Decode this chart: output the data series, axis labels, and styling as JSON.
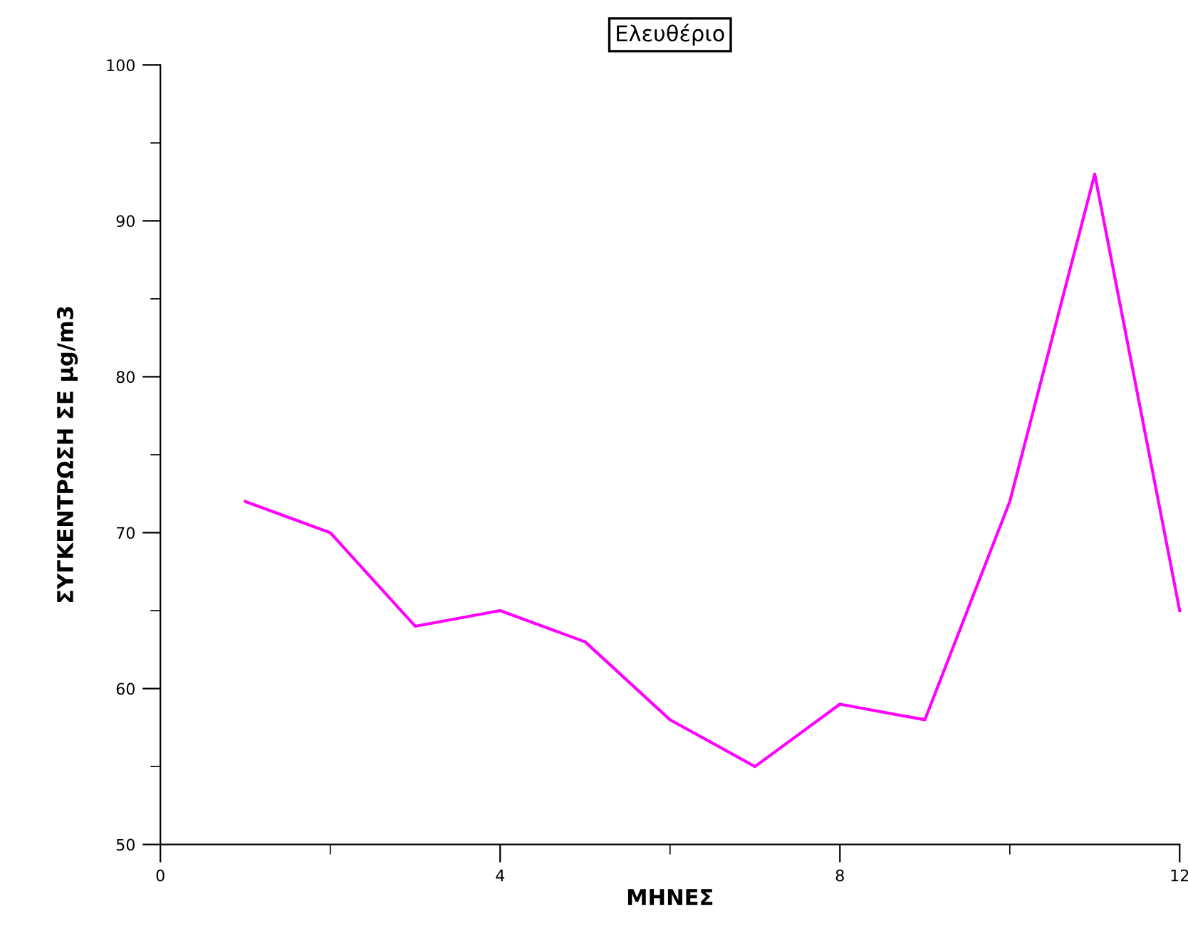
{
  "chart_data": {
    "type": "line",
    "title": "Ελευθέριο",
    "xlabel": "ΜΗΝΕΣ",
    "ylabel": "ΣΥΓΚΕΝΤΡΩΣΗ ΣΕ μg/m3",
    "x": [
      1,
      2,
      3,
      4,
      5,
      6,
      7,
      8,
      9,
      10,
      11,
      12
    ],
    "series": [
      {
        "color": "#ff00ff",
        "values": [
          72,
          70,
          64,
          65,
          63,
          58,
          55,
          59,
          58,
          72,
          93,
          65
        ]
      }
    ],
    "xlim": [
      0,
      12
    ],
    "xticks": [
      0,
      {
        "value": 2,
        "label": null
      },
      4,
      {
        "value": 6,
        "label": null
      },
      8,
      {
        "value": 10,
        "label": null
      },
      12
    ],
    "ylim": [
      50,
      100
    ],
    "yticks": [
      50,
      {
        "value": 55,
        "label": null
      },
      60,
      {
        "value": 65,
        "label": null
      },
      70,
      {
        "value": 75,
        "label": null
      },
      80,
      {
        "value": 85,
        "label": null
      },
      90,
      {
        "value": 95,
        "label": null
      },
      100
    ],
    "grid": false,
    "legend": false,
    "marker": "none",
    "line_style": "solid"
  }
}
